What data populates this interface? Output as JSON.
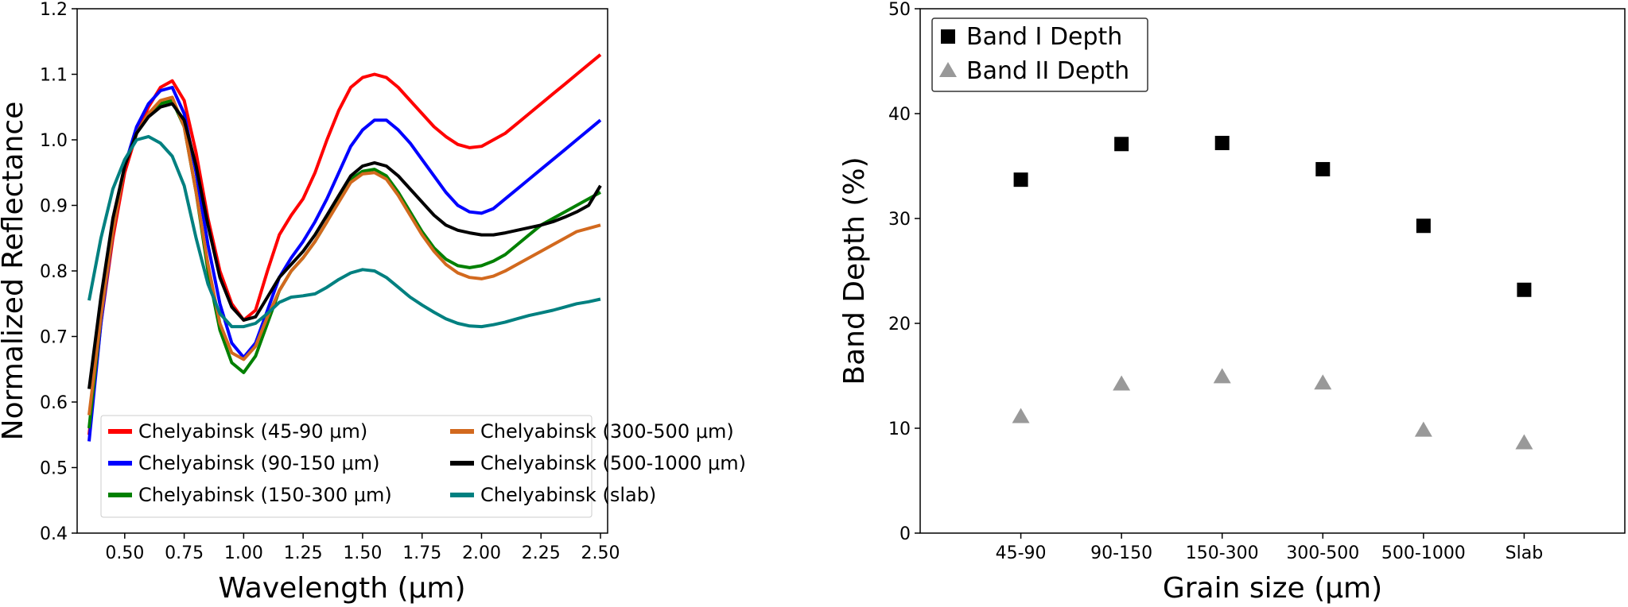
{
  "chart_data": [
    {
      "type": "line",
      "xlabel": "Wavelength (μm)",
      "ylabel": "Normalized Reflectance",
      "xlim": [
        0.3,
        2.53
      ],
      "ylim": [
        0.4,
        1.2
      ],
      "xticks": [
        "0.50",
        "0.75",
        "1.00",
        "1.25",
        "1.50",
        "1.75",
        "2.00",
        "2.25",
        "2.50"
      ],
      "yticks": [
        "0.4",
        "0.5",
        "0.6",
        "0.7",
        "0.8",
        "0.9",
        "1.0",
        "1.1",
        "1.2"
      ],
      "legend_position": "lower-center",
      "series": [
        {
          "name": "Chelyabinsk (45-90 μm)",
          "color": "#ff0000",
          "x": [
            0.35,
            0.4,
            0.45,
            0.5,
            0.55,
            0.6,
            0.65,
            0.7,
            0.75,
            0.8,
            0.85,
            0.9,
            0.95,
            1.0,
            1.05,
            1.1,
            1.15,
            1.2,
            1.25,
            1.3,
            1.35,
            1.4,
            1.45,
            1.5,
            1.55,
            1.6,
            1.65,
            1.7,
            1.75,
            1.8,
            1.85,
            1.9,
            1.95,
            2.0,
            2.05,
            2.1,
            2.15,
            2.2,
            2.25,
            2.3,
            2.35,
            2.4,
            2.45,
            2.5
          ],
          "y": [
            0.55,
            0.72,
            0.85,
            0.95,
            1.01,
            1.05,
            1.08,
            1.09,
            1.06,
            0.98,
            0.88,
            0.8,
            0.75,
            0.725,
            0.74,
            0.8,
            0.855,
            0.885,
            0.91,
            0.95,
            1.0,
            1.045,
            1.08,
            1.095,
            1.1,
            1.095,
            1.08,
            1.06,
            1.04,
            1.02,
            1.005,
            0.993,
            0.988,
            0.99,
            1.0,
            1.01,
            1.025,
            1.04,
            1.055,
            1.07,
            1.085,
            1.1,
            1.115,
            1.13
          ]
        },
        {
          "name": "Chelyabinsk (90-150 μm)",
          "color": "#0000ff",
          "x": [
            0.35,
            0.4,
            0.45,
            0.5,
            0.55,
            0.6,
            0.65,
            0.7,
            0.75,
            0.8,
            0.85,
            0.9,
            0.95,
            1.0,
            1.05,
            1.1,
            1.15,
            1.2,
            1.25,
            1.3,
            1.35,
            1.4,
            1.45,
            1.5,
            1.55,
            1.6,
            1.65,
            1.7,
            1.75,
            1.8,
            1.85,
            1.9,
            1.95,
            2.0,
            2.05,
            2.1,
            2.15,
            2.2,
            2.25,
            2.3,
            2.35,
            2.4,
            2.45,
            2.5
          ],
          "y": [
            0.54,
            0.72,
            0.86,
            0.96,
            1.02,
            1.055,
            1.075,
            1.08,
            1.04,
            0.95,
            0.84,
            0.75,
            0.69,
            0.668,
            0.69,
            0.74,
            0.79,
            0.82,
            0.845,
            0.875,
            0.91,
            0.95,
            0.99,
            1.015,
            1.03,
            1.03,
            1.015,
            0.995,
            0.97,
            0.945,
            0.92,
            0.9,
            0.89,
            0.888,
            0.895,
            0.91,
            0.925,
            0.94,
            0.955,
            0.97,
            0.985,
            1.0,
            1.015,
            1.03
          ]
        },
        {
          "name": "Chelyabinsk (150-300 μm)",
          "color": "#008000",
          "x": [
            0.35,
            0.4,
            0.45,
            0.5,
            0.55,
            0.6,
            0.65,
            0.7,
            0.75,
            0.8,
            0.85,
            0.9,
            0.95,
            1.0,
            1.05,
            1.1,
            1.15,
            1.2,
            1.25,
            1.3,
            1.35,
            1.4,
            1.45,
            1.5,
            1.55,
            1.6,
            1.65,
            1.7,
            1.75,
            1.8,
            1.85,
            1.9,
            1.95,
            2.0,
            2.05,
            2.1,
            2.15,
            2.2,
            2.25,
            2.3,
            2.35,
            2.4,
            2.45,
            2.5
          ],
          "y": [
            0.56,
            0.73,
            0.87,
            0.96,
            1.01,
            1.04,
            1.055,
            1.06,
            1.02,
            0.92,
            0.8,
            0.71,
            0.66,
            0.645,
            0.67,
            0.72,
            0.77,
            0.8,
            0.82,
            0.845,
            0.875,
            0.91,
            0.94,
            0.952,
            0.955,
            0.945,
            0.92,
            0.89,
            0.86,
            0.835,
            0.818,
            0.808,
            0.805,
            0.808,
            0.815,
            0.825,
            0.84,
            0.855,
            0.87,
            0.88,
            0.89,
            0.9,
            0.91,
            0.92
          ]
        },
        {
          "name": "Chelyabinsk (300-500 μm)",
          "color": "#d2691e",
          "x": [
            0.35,
            0.4,
            0.45,
            0.5,
            0.55,
            0.6,
            0.65,
            0.7,
            0.75,
            0.8,
            0.85,
            0.9,
            0.95,
            1.0,
            1.05,
            1.1,
            1.15,
            1.2,
            1.25,
            1.3,
            1.35,
            1.4,
            1.45,
            1.5,
            1.55,
            1.6,
            1.65,
            1.7,
            1.75,
            1.8,
            1.85,
            1.9,
            1.95,
            2.0,
            2.05,
            2.1,
            2.15,
            2.2,
            2.25,
            2.3,
            2.35,
            2.4,
            2.45,
            2.5
          ],
          "y": [
            0.58,
            0.73,
            0.86,
            0.96,
            1.01,
            1.04,
            1.06,
            1.065,
            1.02,
            0.92,
            0.81,
            0.72,
            0.675,
            0.665,
            0.685,
            0.73,
            0.77,
            0.8,
            0.82,
            0.845,
            0.875,
            0.905,
            0.935,
            0.948,
            0.95,
            0.94,
            0.915,
            0.885,
            0.855,
            0.83,
            0.81,
            0.797,
            0.79,
            0.788,
            0.792,
            0.8,
            0.81,
            0.82,
            0.83,
            0.84,
            0.85,
            0.86,
            0.865,
            0.87
          ]
        },
        {
          "name": "Chelyabinsk (500-1000 μm)",
          "color": "#000000",
          "x": [
            0.35,
            0.4,
            0.45,
            0.5,
            0.55,
            0.6,
            0.65,
            0.7,
            0.75,
            0.8,
            0.85,
            0.9,
            0.95,
            1.0,
            1.05,
            1.1,
            1.15,
            1.2,
            1.25,
            1.3,
            1.35,
            1.4,
            1.45,
            1.5,
            1.55,
            1.6,
            1.65,
            1.7,
            1.75,
            1.8,
            1.85,
            1.9,
            1.95,
            2.0,
            2.05,
            2.1,
            2.15,
            2.2,
            2.25,
            2.3,
            2.35,
            2.4,
            2.45,
            2.5
          ],
          "y": [
            0.62,
            0.76,
            0.88,
            0.96,
            1.01,
            1.035,
            1.05,
            1.055,
            1.03,
            0.96,
            0.87,
            0.79,
            0.745,
            0.725,
            0.73,
            0.76,
            0.79,
            0.81,
            0.83,
            0.855,
            0.885,
            0.915,
            0.945,
            0.96,
            0.965,
            0.96,
            0.945,
            0.925,
            0.905,
            0.885,
            0.87,
            0.862,
            0.858,
            0.855,
            0.855,
            0.858,
            0.862,
            0.866,
            0.87,
            0.875,
            0.882,
            0.89,
            0.9,
            0.93
          ]
        },
        {
          "name": "Chelyabinsk (slab)",
          "color": "#008080",
          "x": [
            0.35,
            0.4,
            0.45,
            0.5,
            0.55,
            0.6,
            0.65,
            0.7,
            0.75,
            0.8,
            0.85,
            0.9,
            0.95,
            1.0,
            1.05,
            1.1,
            1.15,
            1.2,
            1.25,
            1.3,
            1.35,
            1.4,
            1.45,
            1.5,
            1.55,
            1.6,
            1.65,
            1.7,
            1.75,
            1.8,
            1.85,
            1.9,
            1.95,
            2.0,
            2.05,
            2.1,
            2.15,
            2.2,
            2.25,
            2.3,
            2.35,
            2.4,
            2.45,
            2.5
          ],
          "y": [
            0.755,
            0.85,
            0.925,
            0.97,
            1.0,
            1.005,
            0.995,
            0.975,
            0.93,
            0.85,
            0.78,
            0.735,
            0.715,
            0.715,
            0.72,
            0.735,
            0.752,
            0.76,
            0.762,
            0.765,
            0.775,
            0.787,
            0.797,
            0.802,
            0.8,
            0.79,
            0.775,
            0.76,
            0.748,
            0.737,
            0.727,
            0.72,
            0.716,
            0.715,
            0.718,
            0.722,
            0.727,
            0.732,
            0.736,
            0.74,
            0.745,
            0.75,
            0.753,
            0.757
          ]
        }
      ]
    },
    {
      "type": "scatter",
      "xlabel": "Grain size (μm)",
      "ylabel": "Band Depth (%)",
      "ylim": [
        0,
        50
      ],
      "categories": [
        "45-90",
        "90-150",
        "150-300",
        "300-500",
        "500-1000",
        "Slab"
      ],
      "yticks": [
        "0",
        "10",
        "20",
        "30",
        "40",
        "50"
      ],
      "legend_position": "upper-left",
      "series": [
        {
          "name": "Band I Depth",
          "marker": "square",
          "color": "#000000",
          "values": [
            33.7,
            37.1,
            37.2,
            34.7,
            29.3,
            23.2
          ]
        },
        {
          "name": "Band II Depth",
          "marker": "triangle",
          "color": "#999999",
          "values": [
            11.1,
            14.2,
            14.9,
            14.3,
            9.8,
            8.6
          ]
        }
      ]
    }
  ]
}
